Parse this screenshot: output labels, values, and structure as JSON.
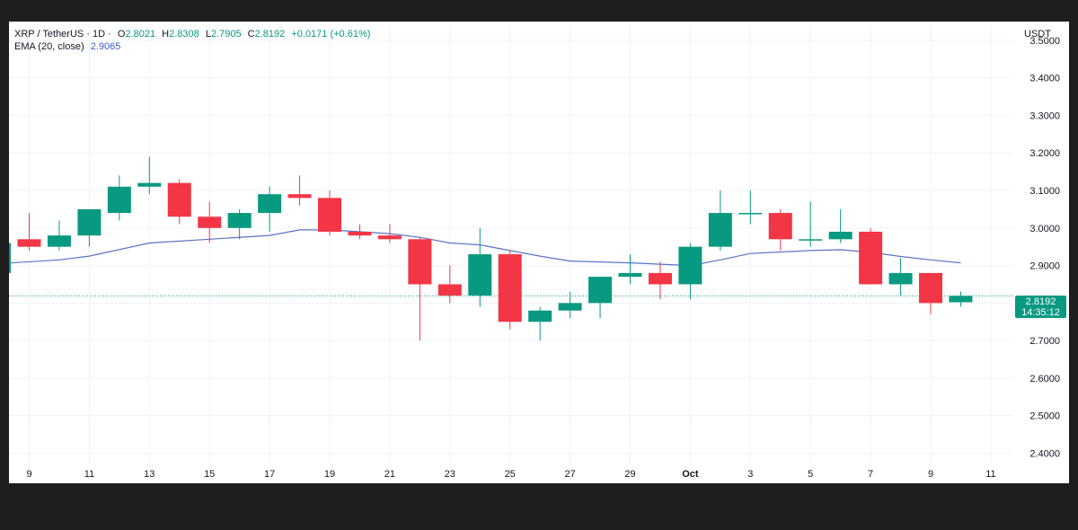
{
  "legend": {
    "symbol": "XRP / TetherUS · 1D ·",
    "o_label": "O",
    "o_value": "2.8021",
    "h_label": "H",
    "h_value": "2.8308",
    "l_label": "L",
    "l_value": "2.7905",
    "c_label": "C",
    "c_value": "2.8192",
    "change": "+0.0171 (+0.61%)",
    "ema_label": "EMA (20, close)",
    "ema_value": "2.9065"
  },
  "price_axis": {
    "unit": "USDT",
    "last_price": "2.8192",
    "countdown": "14:35:12"
  },
  "colors": {
    "up": "#089981",
    "down": "#f23645",
    "ema": "#5b73c6",
    "grid": "#f0f3fa",
    "axis_text": "#131722"
  },
  "chart_data": {
    "type": "candlestick",
    "ylim": [
      2.37,
      3.55
    ],
    "y_ticks": [
      "3.5000",
      "3.4000",
      "3.3000",
      "3.2000",
      "3.1000",
      "3.0000",
      "2.9000",
      "2.8000",
      "2.7000",
      "2.6000",
      "2.5000",
      "2.4000"
    ],
    "x_ticks": [
      "9",
      "11",
      "13",
      "15",
      "17",
      "19",
      "21",
      "23",
      "25",
      "27",
      "29",
      "Oct",
      "3",
      "5",
      "7",
      "9",
      "11"
    ],
    "candles": [
      {
        "x": 8,
        "o": 2.88,
        "h": 2.96,
        "l": 2.87,
        "c": 2.96
      },
      {
        "x": 9,
        "o": 2.97,
        "h": 3.04,
        "l": 2.94,
        "c": 2.95
      },
      {
        "x": 10,
        "o": 2.95,
        "h": 3.02,
        "l": 2.94,
        "c": 2.98
      },
      {
        "x": 11,
        "o": 2.98,
        "h": 3.05,
        "l": 2.95,
        "c": 3.05
      },
      {
        "x": 12,
        "o": 3.04,
        "h": 3.14,
        "l": 3.02,
        "c": 3.11
      },
      {
        "x": 13,
        "o": 3.11,
        "h": 3.19,
        "l": 3.09,
        "c": 3.12
      },
      {
        "x": 14,
        "o": 3.12,
        "h": 3.13,
        "l": 3.01,
        "c": 3.03
      },
      {
        "x": 15,
        "o": 3.03,
        "h": 3.07,
        "l": 2.96,
        "c": 3.0
      },
      {
        "x": 16,
        "o": 3.0,
        "h": 3.05,
        "l": 2.97,
        "c": 3.04
      },
      {
        "x": 17,
        "o": 3.04,
        "h": 3.11,
        "l": 2.99,
        "c": 3.09
      },
      {
        "x": 18,
        "o": 3.09,
        "h": 3.14,
        "l": 3.06,
        "c": 3.08
      },
      {
        "x": 19,
        "o": 3.08,
        "h": 3.1,
        "l": 2.98,
        "c": 2.99
      },
      {
        "x": 20,
        "o": 2.99,
        "h": 3.01,
        "l": 2.97,
        "c": 2.98
      },
      {
        "x": 21,
        "o": 2.98,
        "h": 3.01,
        "l": 2.96,
        "c": 2.97
      },
      {
        "x": 22,
        "o": 2.97,
        "h": 2.975,
        "l": 2.7,
        "c": 2.85
      },
      {
        "x": 23,
        "o": 2.85,
        "h": 2.9,
        "l": 2.8,
        "c": 2.82
      },
      {
        "x": 24,
        "o": 2.82,
        "h": 3.0,
        "l": 2.79,
        "c": 2.93
      },
      {
        "x": 25,
        "o": 2.93,
        "h": 2.94,
        "l": 2.73,
        "c": 2.75
      },
      {
        "x": 26,
        "o": 2.75,
        "h": 2.79,
        "l": 2.7,
        "c": 2.78
      },
      {
        "x": 27,
        "o": 2.78,
        "h": 2.83,
        "l": 2.76,
        "c": 2.8
      },
      {
        "x": 28,
        "o": 2.8,
        "h": 2.87,
        "l": 2.76,
        "c": 2.87
      },
      {
        "x": 29,
        "o": 2.87,
        "h": 2.93,
        "l": 2.85,
        "c": 2.88
      },
      {
        "x": 30,
        "o": 2.88,
        "h": 2.91,
        "l": 2.81,
        "c": 2.85
      },
      {
        "x": 31,
        "o": 2.85,
        "h": 2.96,
        "l": 2.81,
        "c": 2.95
      },
      {
        "x": 32,
        "o": 2.95,
        "h": 3.1,
        "l": 2.94,
        "c": 3.04
      },
      {
        "x": 33,
        "o": 3.04,
        "h": 3.1,
        "l": 3.01,
        "c": 3.04
      },
      {
        "x": 34,
        "o": 3.04,
        "h": 3.05,
        "l": 2.94,
        "c": 2.97
      },
      {
        "x": 35,
        "o": 2.97,
        "h": 3.07,
        "l": 2.95,
        "c": 2.97
      },
      {
        "x": 36,
        "o": 2.97,
        "h": 3.05,
        "l": 2.96,
        "c": 2.99
      },
      {
        "x": 37,
        "o": 2.99,
        "h": 3.0,
        "l": 2.85,
        "c": 2.85
      },
      {
        "x": 38,
        "o": 2.85,
        "h": 2.92,
        "l": 2.82,
        "c": 2.88
      },
      {
        "x": 39,
        "o": 2.88,
        "h": 2.88,
        "l": 2.77,
        "c": 2.8
      },
      {
        "x": 40,
        "o": 2.8021,
        "h": 2.8308,
        "l": 2.7905,
        "c": 2.8192
      }
    ],
    "ema": {
      "name": "EMA (20, close)",
      "points": [
        [
          8,
          2.905
        ],
        [
          10,
          2.915
        ],
        [
          11,
          2.925
        ],
        [
          13,
          2.96
        ],
        [
          15,
          2.97
        ],
        [
          17,
          2.98
        ],
        [
          18,
          2.995
        ],
        [
          19,
          2.995
        ],
        [
          21,
          2.985
        ],
        [
          22,
          2.975
        ],
        [
          23,
          2.96
        ],
        [
          24,
          2.955
        ],
        [
          25,
          2.94
        ],
        [
          26,
          2.925
        ],
        [
          27,
          2.912
        ],
        [
          29,
          2.907
        ],
        [
          31,
          2.9
        ],
        [
          32,
          2.915
        ],
        [
          33,
          2.932
        ],
        [
          35,
          2.94
        ],
        [
          36,
          2.942
        ],
        [
          37,
          2.935
        ],
        [
          38,
          2.924
        ],
        [
          39,
          2.915
        ],
        [
          40,
          2.907
        ]
      ]
    },
    "last_price": 2.8192
  }
}
